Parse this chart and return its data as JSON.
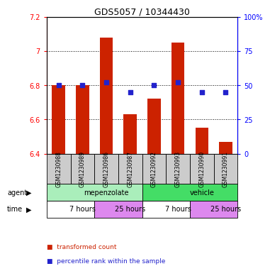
{
  "title": "GDS5057 / 10344430",
  "samples": [
    "GSM1230988",
    "GSM1230989",
    "GSM1230986",
    "GSM1230987",
    "GSM1230992",
    "GSM1230993",
    "GSM1230990",
    "GSM1230991"
  ],
  "red_values": [
    6.8,
    6.8,
    7.08,
    6.63,
    6.72,
    7.05,
    6.55,
    6.47
  ],
  "blue_values": [
    50,
    50,
    52,
    45,
    50,
    52,
    45,
    45
  ],
  "ylim_left": [
    6.4,
    7.2
  ],
  "ylim_right": [
    0,
    100
  ],
  "yticks_left": [
    6.4,
    6.6,
    6.8,
    7.0,
    7.2
  ],
  "yticks_right": [
    0,
    25,
    50,
    75,
    100
  ],
  "ytick_labels_left": [
    "6.4",
    "6.6",
    "6.8",
    "7",
    "7.2"
  ],
  "ytick_labels_right": [
    "0",
    "25",
    "50",
    "75",
    "100%"
  ],
  "bar_color": "#cc2200",
  "dot_color": "#2222cc",
  "bar_bottom": 6.4,
  "agent_groups": [
    {
      "label": "mepenzolate",
      "start": 0,
      "end": 4,
      "color": "#aaeebb"
    },
    {
      "label": "vehicle",
      "start": 4,
      "end": 8,
      "color": "#44dd66"
    }
  ],
  "time_groups": [
    {
      "label": "7 hours",
      "start": 0,
      "end": 2,
      "color": "#ffffff"
    },
    {
      "label": "25 hours",
      "start": 2,
      "end": 4,
      "color": "#dd88ee"
    },
    {
      "label": "7 hours",
      "start": 4,
      "end": 6,
      "color": "#ffffff"
    },
    {
      "label": "25 hours",
      "start": 6,
      "end": 8,
      "color": "#dd88ee"
    }
  ],
  "legend_red_label": "transformed count",
  "legend_blue_label": "percentile rank within the sample",
  "sample_box_color": "#cccccc",
  "bar_width": 0.55,
  "dot_size": 18,
  "main_fontsize": 7,
  "tick_fontsize": 7,
  "title_fontsize": 9,
  "sample_fontsize": 5.5,
  "legend_fontsize": 6.5
}
